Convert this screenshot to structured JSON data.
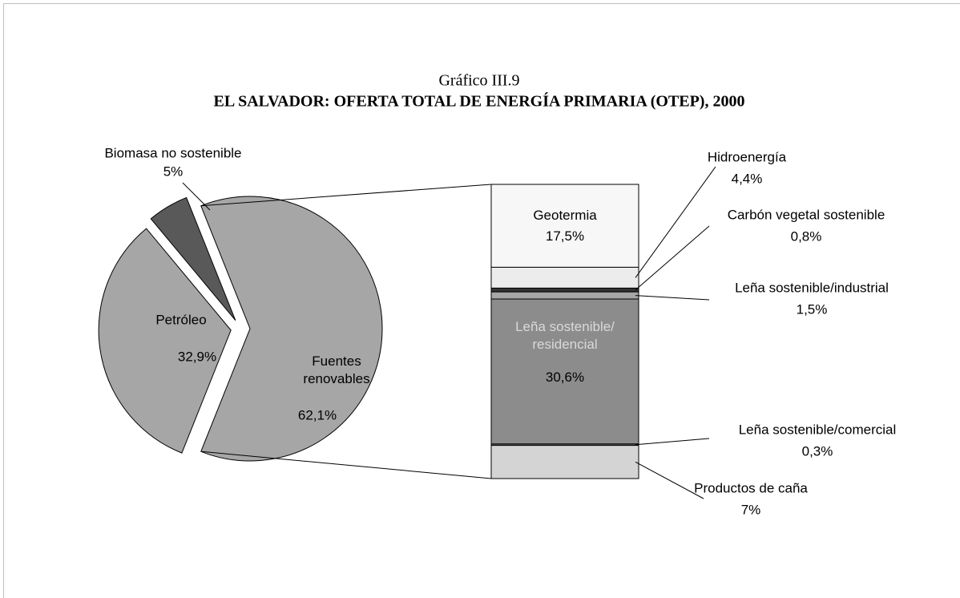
{
  "chart_data": {
    "type": "pie",
    "supertitle": "Gráfico III.9",
    "title": "EL SALVADOR: OFERTA TOTAL DE ENERGÍA PRIMARIA (OTEP), 2000",
    "categories": [
      "Fuentes renovables",
      "Petróleo",
      "Biomasa no sostenible"
    ],
    "values": [
      62.1,
      32.9,
      5
    ],
    "value_labels": [
      "62,1%",
      "32,9%",
      "5%"
    ],
    "colors": [
      "#a6a6a6",
      "#a6a6a6",
      "#595959"
    ],
    "breakout": {
      "type": "bar",
      "categories": [
        "Geotermia",
        "Hidroenergía",
        "Carbón vegetal sostenible",
        "Leña sostenible/industrial",
        "Leña sostenible/ residencial",
        "Leña sostenible/comercial",
        "Productos de caña"
      ],
      "values": [
        17.5,
        4.4,
        0.8,
        1.5,
        30.6,
        0.3,
        7
      ],
      "value_labels": [
        "17,5%",
        "4,4%",
        "0,8%",
        "1,5%",
        "30,6%",
        "0,3%",
        "7%"
      ],
      "colors": [
        "#f7f7f7",
        "#ececec",
        "#333333",
        "#a6a6a6",
        "#8c8c8c",
        "#666666",
        "#d4d4d4"
      ]
    }
  }
}
